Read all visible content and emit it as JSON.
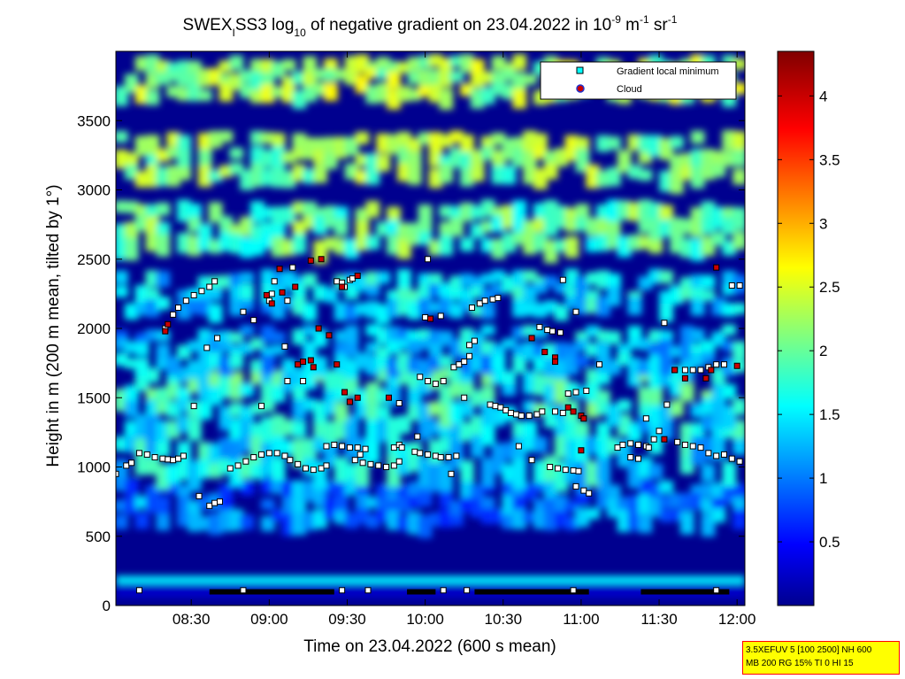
{
  "title": {
    "prefix": "SWEX",
    "subscript_a": "I",
    "middle": "SS3 log",
    "subscript_b": "10",
    "rest": " of negative gradient on 23.04.2022 in 10",
    "exp1": "-9",
    "unit1": " m",
    "exp2": "-1",
    "unit2": " sr",
    "exp3": "-1"
  },
  "xlabel": "Time on 23.04.2022 (600 s mean)",
  "ylabel": "Height in m (200 m mean, tilted by 1°)",
  "legend": {
    "minimum": "Gradient local minimum",
    "cloud": "Cloud"
  },
  "info_box": {
    "line1": "3.5XEFUV 5 [100 2500] NH 600",
    "line2": "MB 200 RG 15% TI 0 HI 15"
  },
  "colors": {
    "background_low": "#00008f",
    "cloud": "#cc0000",
    "minimum_fill": "#ffffff",
    "minimum_edge": "#000000",
    "infobox_bg": "#ffff00",
    "infobox_border": "#ff0000"
  },
  "chart_data": {
    "type": "heatmap",
    "x_ticks": [
      "08:30",
      "09:00",
      "09:30",
      "10:00",
      "10:30",
      "11:00",
      "11:30",
      "12:00"
    ],
    "x_tick_minutes": [
      510,
      540,
      570,
      600,
      630,
      660,
      690,
      720
    ],
    "xlim_minutes": [
      481,
      723
    ],
    "y_ticks": [
      "0",
      "500",
      "1000",
      "1500",
      "2000",
      "2500",
      "3000",
      "3500"
    ],
    "y_tick_values": [
      0,
      500,
      1000,
      1500,
      2000,
      2500,
      3000,
      3500
    ],
    "ylim": [
      0,
      4000
    ],
    "colorbar": {
      "ticks": [
        "0.5",
        "1",
        "1.5",
        "2",
        "2.5",
        "3",
        "3.5",
        "4"
      ],
      "tick_values": [
        0.5,
        1,
        1.5,
        2,
        2.5,
        3,
        3.5,
        4
      ],
      "lim": [
        0,
        4.35
      ],
      "colormap": "jet"
    },
    "legend_position": "top-right",
    "heat_bands": [
      {
        "h": [
          50,
          160
        ],
        "level": 0.3
      },
      {
        "h": [
          160,
          215
        ],
        "level": 1.55
      },
      {
        "h": [
          560,
          900
        ],
        "level": 1.1
      },
      {
        "h": [
          900,
          1350
        ],
        "level": 1.55
      },
      {
        "h": [
          1350,
          1700
        ],
        "level": 1.75
      },
      {
        "h": [
          1700,
          2000
        ],
        "level": 1.4
      },
      {
        "h": [
          2100,
          2400
        ],
        "level": 1.5
      },
      {
        "h": [
          2550,
          2900
        ],
        "level": 2.05
      },
      {
        "h": [
          3050,
          3400
        ],
        "level": 2.2
      },
      {
        "h": [
          3650,
          3950
        ],
        "level": 2.3
      }
    ],
    "series": [
      {
        "name": "Gradient local minimum",
        "points": [
          [
            481,
            950
          ],
          [
            485,
            1010
          ],
          [
            487,
            1030
          ],
          [
            490,
            1100
          ],
          [
            493,
            1090
          ],
          [
            496,
            1070
          ],
          [
            499,
            1060
          ],
          [
            501,
            1055
          ],
          [
            503,
            1050
          ],
          [
            505,
            1060
          ],
          [
            507,
            1080
          ],
          [
            500,
            2000
          ],
          [
            503,
            2100
          ],
          [
            505,
            2150
          ],
          [
            508,
            2200
          ],
          [
            511,
            2240
          ],
          [
            514,
            2270
          ],
          [
            517,
            2300
          ],
          [
            519,
            2340
          ],
          [
            520,
            1930
          ],
          [
            516,
            1860
          ],
          [
            511,
            1440
          ],
          [
            513,
            790
          ],
          [
            517,
            720
          ],
          [
            519,
            740
          ],
          [
            521,
            750
          ],
          [
            537,
            1440
          ],
          [
            534,
            2060
          ],
          [
            530,
            2120
          ],
          [
            525,
            990
          ],
          [
            528,
            1010
          ],
          [
            531,
            1040
          ],
          [
            534,
            1070
          ],
          [
            537,
            1090
          ],
          [
            540,
            1100
          ],
          [
            543,
            1100
          ],
          [
            546,
            1080
          ],
          [
            548,
            1050
          ],
          [
            551,
            1020
          ],
          [
            554,
            990
          ],
          [
            557,
            980
          ],
          [
            560,
            990
          ],
          [
            562,
            1010
          ],
          [
            546,
            1870
          ],
          [
            553,
            1620
          ],
          [
            547,
            1620
          ],
          [
            541,
            2250
          ],
          [
            540,
            2200
          ],
          [
            542,
            2340
          ],
          [
            547,
            2200
          ],
          [
            549,
            2440
          ],
          [
            562,
            1150
          ],
          [
            565,
            1160
          ],
          [
            568,
            1150
          ],
          [
            571,
            1140
          ],
          [
            574,
            1140
          ],
          [
            577,
            1130
          ],
          [
            575,
            1090
          ],
          [
            566,
            2340
          ],
          [
            568,
            2330
          ],
          [
            571,
            2350
          ],
          [
            569,
            2300
          ],
          [
            572,
            2360
          ],
          [
            573,
            1050
          ],
          [
            576,
            1030
          ],
          [
            579,
            1020
          ],
          [
            582,
            1010
          ],
          [
            585,
            1000
          ],
          [
            588,
            1010
          ],
          [
            590,
            1040
          ],
          [
            590,
            1460
          ],
          [
            588,
            1140
          ],
          [
            590,
            1160
          ],
          [
            591,
            1140
          ],
          [
            596,
            1110
          ],
          [
            598,
            1100
          ],
          [
            601,
            1090
          ],
          [
            604,
            1080
          ],
          [
            606,
            1070
          ],
          [
            607,
            1620
          ],
          [
            604,
            1600
          ],
          [
            601,
            1620
          ],
          [
            598,
            1650
          ],
          [
            597,
            1220
          ],
          [
            600,
            2080
          ],
          [
            606,
            2090
          ],
          [
            601,
            2500
          ],
          [
            611,
            1720
          ],
          [
            613,
            1740
          ],
          [
            615,
            1760
          ],
          [
            617,
            1800
          ],
          [
            617,
            1880
          ],
          [
            619,
            1910
          ],
          [
            615,
            1500
          ],
          [
            612,
            1080
          ],
          [
            609,
            1070
          ],
          [
            610,
            950
          ],
          [
            625,
            1450
          ],
          [
            627,
            1440
          ],
          [
            629,
            1430
          ],
          [
            631,
            1410
          ],
          [
            633,
            1390
          ],
          [
            635,
            1380
          ],
          [
            637,
            1370
          ],
          [
            640,
            1370
          ],
          [
            643,
            1380
          ],
          [
            645,
            1400
          ],
          [
            618,
            2150
          ],
          [
            621,
            2180
          ],
          [
            623,
            2200
          ],
          [
            626,
            2210
          ],
          [
            628,
            2220
          ],
          [
            636,
            1150
          ],
          [
            641,
            1050
          ],
          [
            644,
            2010
          ],
          [
            647,
            1990
          ],
          [
            649,
            1980
          ],
          [
            652,
            1970
          ],
          [
            650,
            1400
          ],
          [
            653,
            1390
          ],
          [
            648,
            1000
          ],
          [
            651,
            990
          ],
          [
            654,
            980
          ],
          [
            657,
            975
          ],
          [
            659,
            970
          ],
          [
            653,
            2350
          ],
          [
            655,
            1530
          ],
          [
            658,
            1540
          ],
          [
            662,
            1550
          ],
          [
            658,
            860
          ],
          [
            661,
            830
          ],
          [
            663,
            810
          ],
          [
            658,
            2120
          ],
          [
            667,
            1740
          ],
          [
            674,
            1140
          ],
          [
            676,
            1160
          ],
          [
            679,
            1170
          ],
          [
            682,
            1160
          ],
          [
            685,
            1150
          ],
          [
            688,
            1200
          ],
          [
            690,
            1260
          ],
          [
            685,
            1350
          ],
          [
            679,
            1070
          ],
          [
            682,
            1060
          ],
          [
            686,
            1140
          ],
          [
            692,
            2040
          ],
          [
            696,
            1700
          ],
          [
            700,
            1700
          ],
          [
            703,
            1700
          ],
          [
            706,
            1700
          ],
          [
            709,
            1720
          ],
          [
            712,
            1740
          ],
          [
            715,
            1740
          ],
          [
            693,
            1450
          ],
          [
            697,
            1180
          ],
          [
            700,
            1160
          ],
          [
            703,
            1150
          ],
          [
            706,
            1140
          ],
          [
            709,
            1100
          ],
          [
            712,
            1080
          ],
          [
            715,
            1090
          ],
          [
            718,
            1060
          ],
          [
            721,
            1040
          ],
          [
            718,
            2310
          ],
          [
            721,
            2310
          ],
          [
            490,
            110
          ],
          [
            530,
            110
          ],
          [
            568,
            110
          ],
          [
            578,
            110
          ],
          [
            607,
            110
          ],
          [
            616,
            110
          ],
          [
            657,
            110
          ],
          [
            712,
            110
          ],
          [
            724,
            110
          ]
        ]
      },
      {
        "name": "Cloud",
        "points": [
          [
            500,
            1980
          ],
          [
            501,
            2030
          ],
          [
            539,
            2240
          ],
          [
            541,
            2180
          ],
          [
            544,
            2430
          ],
          [
            545,
            2260
          ],
          [
            550,
            2300
          ],
          [
            551,
            1740
          ],
          [
            553,
            1760
          ],
          [
            556,
            1770
          ],
          [
            557,
            1720
          ],
          [
            559,
            2000
          ],
          [
            560,
            2500
          ],
          [
            556,
            2490
          ],
          [
            563,
            1950
          ],
          [
            566,
            1740
          ],
          [
            569,
            1540
          ],
          [
            571,
            1470
          ],
          [
            568,
            2300
          ],
          [
            574,
            2380
          ],
          [
            574,
            1500
          ],
          [
            586,
            1500
          ],
          [
            602,
            2070
          ],
          [
            641,
            1930
          ],
          [
            646,
            1830
          ],
          [
            650,
            1790
          ],
          [
            650,
            1760
          ],
          [
            655,
            1430
          ],
          [
            657,
            1400
          ],
          [
            660,
            1370
          ],
          [
            661,
            1350
          ],
          [
            660,
            1120
          ],
          [
            692,
            1200
          ],
          [
            696,
            1700
          ],
          [
            700,
            1640
          ],
          [
            708,
            1640
          ],
          [
            710,
            1700
          ],
          [
            712,
            2440
          ],
          [
            720,
            1730
          ]
        ]
      }
    ],
    "ground_blocks": [
      {
        "x": [
          517,
          565
        ]
      },
      {
        "x": [
          593,
          604
        ]
      },
      {
        "x": [
          619,
          663
        ]
      },
      {
        "x": [
          683,
          717
        ]
      }
    ]
  }
}
